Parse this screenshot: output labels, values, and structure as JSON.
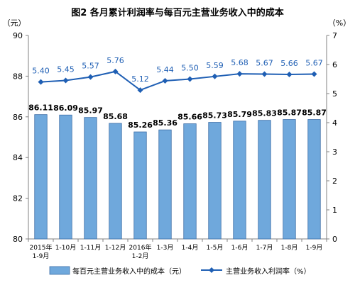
{
  "chart_data": {
    "type": "bar+line",
    "title": "图2  各月累计利润率与每百元主营业务收入中的成本",
    "y_left": {
      "unit_label": "（元）",
      "ticks": [
        "90",
        "88",
        "86",
        "84",
        "82",
        "80"
      ],
      "range": [
        80,
        90
      ]
    },
    "y_right": {
      "unit_label": "（%）",
      "ticks": [
        "7",
        "6",
        "5",
        "4",
        "3",
        "2",
        "1",
        "0"
      ],
      "range": [
        0,
        7
      ]
    },
    "categories": [
      [
        "2015年",
        "1-9月"
      ],
      [
        "1-10月"
      ],
      [
        "1-11月"
      ],
      [
        "1-12月"
      ],
      [
        "2016年",
        "1-2月"
      ],
      [
        "1-3月"
      ],
      [
        "1-4月"
      ],
      [
        "1-5月"
      ],
      [
        "1-6月"
      ],
      [
        "1-7月"
      ],
      [
        "1-8月"
      ],
      [
        "1-9月"
      ]
    ],
    "series": [
      {
        "name": "每百元主营业务收入中的成本（元）",
        "type": "bar",
        "axis": "left",
        "values": [
          86.11,
          86.09,
          85.97,
          85.68,
          85.26,
          85.36,
          85.66,
          85.73,
          85.79,
          85.83,
          85.87,
          85.87
        ],
        "labels": [
          "86.11",
          "86.09",
          "85.97",
          "85.68",
          "85.26",
          "85.36",
          "85.66",
          "85.73",
          "85.79",
          "85.83",
          "85.87",
          "85.87"
        ]
      },
      {
        "name": "主营业务收入利润率（%）",
        "type": "line",
        "axis": "right",
        "values": [
          5.4,
          5.45,
          5.57,
          5.76,
          5.12,
          5.44,
          5.5,
          5.59,
          5.68,
          5.67,
          5.66,
          5.67
        ],
        "labels": [
          "5.40",
          "5.45",
          "5.57",
          "5.76",
          "5.12",
          "5.44",
          "5.50",
          "5.59",
          "5.68",
          "5.67",
          "5.66",
          "5.67"
        ]
      }
    ],
    "colors": {
      "bar_fill": "#6fa8dc",
      "bar_stroke": "#3d6ea8",
      "line": "#1f5fb4",
      "label": "#1f5fb4",
      "axis": "#808080",
      "text": "#000000"
    },
    "grid": false,
    "legend_position": "bottom"
  }
}
